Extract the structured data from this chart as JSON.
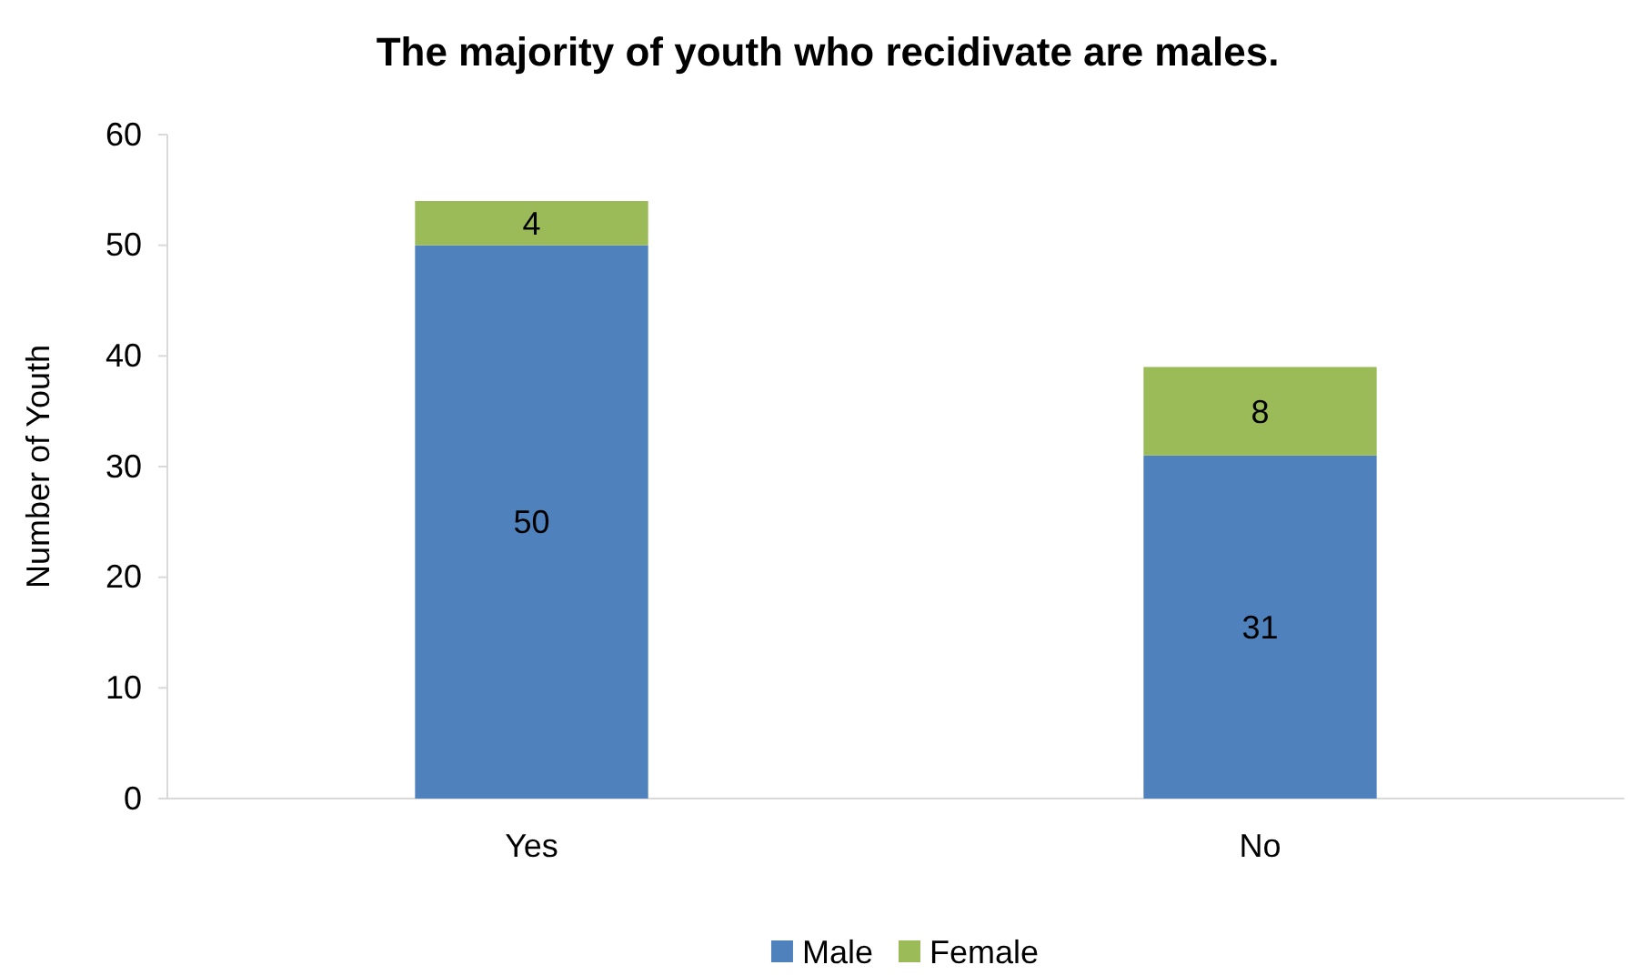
{
  "chart_data": {
    "type": "bar",
    "title": "The majority of youth who recidivate are males.",
    "ylabel": "Number of Youth",
    "categories": [
      "Yes",
      "No"
    ],
    "series": [
      {
        "name": "Male",
        "color": "#4f81bd",
        "values": [
          50,
          31
        ]
      },
      {
        "name": "Female",
        "color": "#9bbb59",
        "values": [
          4,
          8
        ]
      }
    ],
    "stacked": true,
    "data_labels": true,
    "ylim": [
      0,
      60
    ],
    "yticks": [
      0,
      10,
      20,
      30,
      40,
      50,
      60
    ],
    "grid": false,
    "legend": "bottom"
  }
}
